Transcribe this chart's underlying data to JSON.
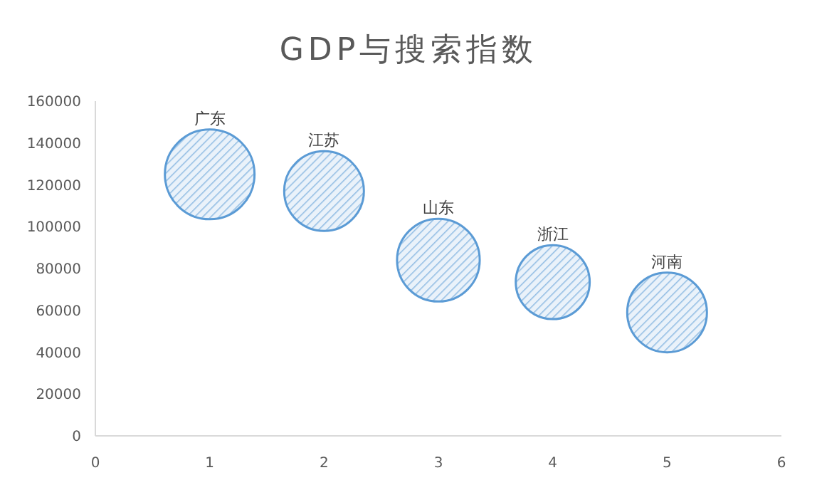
{
  "chart_data": {
    "type": "bubble",
    "title": "GDP与搜索指数",
    "x": [
      1,
      2,
      3,
      4,
      5
    ],
    "series": [
      {
        "color": "#5b9bd5",
        "values": [
          125000,
          117000,
          84000,
          73500,
          59000
        ],
        "sizes": [
          1,
          0.79,
          0.85,
          0.68,
          0.79
        ]
      }
    ],
    "annotations": [
      {
        "text": "广东",
        "x": 1,
        "y": 125000
      },
      {
        "text": "江苏",
        "x": 2,
        "y": 117000
      },
      {
        "text": "山东",
        "x": 3,
        "y": 84000
      },
      {
        "text": "浙江",
        "x": 4,
        "y": 73500
      },
      {
        "text": "河南",
        "x": 5,
        "y": 59000
      }
    ],
    "xlim": [
      0,
      6
    ],
    "xticks": [
      0,
      1,
      2,
      3,
      4,
      5,
      6
    ],
    "ylim": [
      0,
      160000
    ],
    "yticks": [
      0,
      20000,
      40000,
      60000,
      80000,
      100000,
      120000,
      140000,
      160000
    ],
    "grid": false
  }
}
